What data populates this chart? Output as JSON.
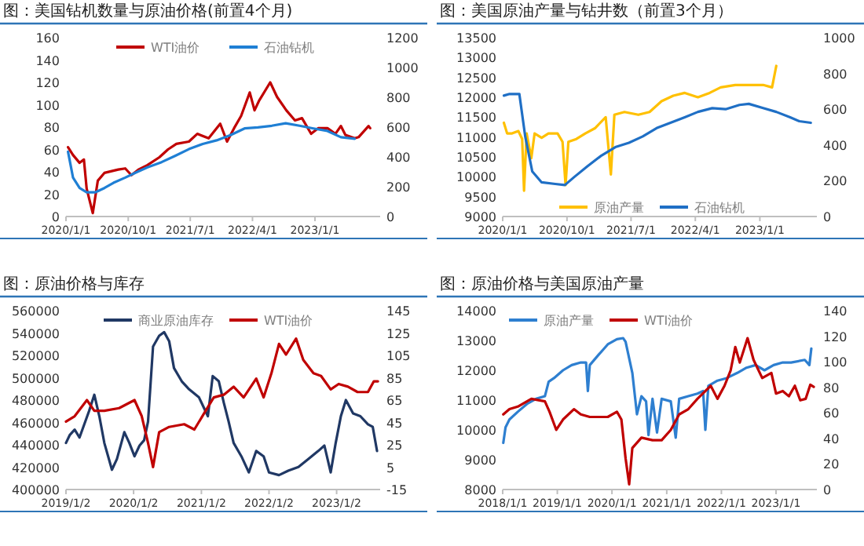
{
  "chart_data": [
    {
      "type": "line",
      "title": "图：美国钻机数量与原油价格(前置4个月)",
      "legend": "top",
      "xlim": [
        "2020-01-01",
        "2023-10-15"
      ],
      "xticks": [
        {
          "value": "2020-01-01",
          "label": "2020/1/1"
        },
        {
          "value": "2020-10-01",
          "label": "2020/10/1"
        },
        {
          "value": "2021-07-01",
          "label": "2021/7/1"
        },
        {
          "value": "2022-04-01",
          "label": "2022/4/1"
        },
        {
          "value": "2023-01-01",
          "label": "2023/1/1"
        }
      ],
      "ylim": [
        0,
        160
      ],
      "yticks": [
        0,
        20,
        40,
        60,
        80,
        100,
        120,
        140,
        160
      ],
      "y2lim": [
        0,
        1200
      ],
      "y2ticks": [
        0,
        200,
        400,
        600,
        800,
        1000,
        1200
      ],
      "series": [
        {
          "name": "WTI油价",
          "color": "#c00000",
          "x": [
            "2020-01-10",
            "2020-02-01",
            "2020-03-01",
            "2020-03-20",
            "2020-04-01",
            "2020-04-28",
            "2020-05-20",
            "2020-06-18",
            "2020-08-18",
            "2020-09-18",
            "2020-10-15",
            "2020-11-15",
            "2020-12-25",
            "2021-02-15",
            "2021-03-25",
            "2021-05-01",
            "2021-06-25",
            "2021-08-01",
            "2021-09-20",
            "2021-11-10",
            "2021-12-10",
            "2022-01-10",
            "2022-02-10",
            "2022-03-20",
            "2022-04-10",
            "2022-05-01",
            "2022-06-18",
            "2022-07-18",
            "2022-08-28",
            "2022-10-05",
            "2022-11-05",
            "2022-12-15",
            "2023-01-15",
            "2023-02-25",
            "2023-04-01",
            "2023-04-25",
            "2023-05-15",
            "2023-06-25",
            "2023-07-12",
            "2023-08-25",
            "2023-09-01"
          ],
          "values": [
            62,
            55,
            48,
            51,
            25,
            3,
            32,
            39,
            42,
            43,
            37,
            42,
            46,
            53,
            60,
            65,
            67,
            74,
            70,
            83,
            67,
            79,
            90,
            111,
            95,
            104,
            120,
            107,
            95,
            86,
            88,
            74,
            79,
            79,
            74,
            81,
            73,
            70,
            71,
            81,
            79
          ]
        },
        {
          "name": "石油钻机",
          "color": "#1f7fd4",
          "axis": "y2",
          "x": [
            "2020-01-10",
            "2020-02-01",
            "2020-03-01",
            "2020-04-01",
            "2020-05-10",
            "2020-06-18",
            "2020-07-28",
            "2020-09-18",
            "2020-11-05",
            "2020-12-25",
            "2021-02-25",
            "2021-04-25",
            "2021-06-25",
            "2021-08-25",
            "2021-10-25",
            "2021-12-25",
            "2022-02-25",
            "2022-04-25",
            "2022-06-25",
            "2022-08-25",
            "2022-10-25",
            "2022-12-25",
            "2023-02-25",
            "2023-04-25",
            "2023-06-25"
          ],
          "values": [
            435,
            261,
            191,
            163,
            163,
            191,
            226,
            261,
            296,
            330,
            365,
            407,
            452,
            487,
            511,
            546,
            591,
            598,
            609,
            626,
            609,
            591,
            574,
            532,
            522
          ]
        }
      ]
    },
    {
      "type": "line",
      "title": "图：美国原油产量与钻井数（前置3个月）",
      "legend": "bottom",
      "xlim": [
        "2020-01-01",
        "2023-09-01"
      ],
      "xticks": [
        {
          "value": "2020-01-01",
          "label": "2020/1/1"
        },
        {
          "value": "2020-10-01",
          "label": "2020/10/1"
        },
        {
          "value": "2021-07-01",
          "label": "2021/7/1"
        },
        {
          "value": "2022-04-01",
          "label": "2022/4/1"
        },
        {
          "value": "2023-01-01",
          "label": "2023/1/1"
        }
      ],
      "ylim": [
        9000,
        13500
      ],
      "yticks": [
        9000,
        9500,
        10000,
        10500,
        11000,
        11500,
        12000,
        12500,
        13000,
        13500
      ],
      "y2lim": [
        0,
        1000
      ],
      "y2ticks": [
        0,
        200,
        400,
        600,
        800,
        1000
      ],
      "series": [
        {
          "name": "原油产量",
          "color": "#ffc000",
          "x": [
            "2020-01-06",
            "2020-01-20",
            "2020-02-10",
            "2020-03-08",
            "2020-03-24",
            "2020-04-01",
            "2020-04-12",
            "2020-05-02",
            "2020-05-16",
            "2020-06-15",
            "2020-07-14",
            "2020-08-22",
            "2020-09-12",
            "2020-09-25",
            "2020-10-07",
            "2020-11-10",
            "2020-12-18",
            "2021-01-28",
            "2021-03-15",
            "2021-04-06",
            "2021-04-21",
            "2021-06-03",
            "2021-08-01",
            "2021-09-18",
            "2021-11-08",
            "2021-12-28",
            "2022-02-15",
            "2022-04-12",
            "2022-06-01",
            "2022-07-18",
            "2022-09-18",
            "2022-11-15",
            "2023-01-15",
            "2023-02-22",
            "2023-03-12"
          ],
          "values": [
            11360,
            11090,
            11090,
            11150,
            10950,
            9650,
            11090,
            10470,
            11090,
            10980,
            11090,
            11090,
            10880,
            9790,
            10880,
            10950,
            11090,
            11220,
            11500,
            10060,
            11560,
            11630,
            11560,
            11630,
            11900,
            12040,
            12110,
            12000,
            12110,
            12250,
            12310,
            12310,
            12310,
            12250,
            12790
          ]
        },
        {
          "name": "石油钻机",
          "color": "#1f6fc5",
          "axis": "y2",
          "x": [
            "2020-01-06",
            "2020-01-30",
            "2020-03-12",
            "2020-04-06",
            "2020-05-06",
            "2020-06-15",
            "2020-08-12",
            "2020-09-22",
            "2020-11-01",
            "2020-12-28",
            "2021-02-26",
            "2021-04-25",
            "2021-06-22",
            "2021-08-20",
            "2021-10-18",
            "2021-12-16",
            "2022-02-15",
            "2022-04-12",
            "2022-06-12",
            "2022-08-08",
            "2022-10-06",
            "2022-11-15",
            "2023-01-15",
            "2023-03-12",
            "2023-05-10",
            "2023-06-18",
            "2023-08-06"
          ],
          "values": [
            676,
            685,
            685,
            448,
            252,
            191,
            182,
            176,
            221,
            282,
            342,
            388,
            412,
            448,
            494,
            524,
            555,
            585,
            606,
            600,
            624,
            630,
            606,
            585,
            555,
            533,
            524
          ]
        }
      ]
    },
    {
      "type": "line",
      "title": "图：原油价格与库存",
      "legend": "top",
      "xlim": [
        "2019-01-02",
        "2023-08-25"
      ],
      "xticks": [
        {
          "value": "2019-01-02",
          "label": "2019/1/2"
        },
        {
          "value": "2020-01-02",
          "label": "2020/1/2"
        },
        {
          "value": "2021-01-02",
          "label": "2021/1/2"
        },
        {
          "value": "2022-01-02",
          "label": "2022/1/2"
        },
        {
          "value": "2023-01-02",
          "label": "2023/1/2"
        }
      ],
      "ylim": [
        400000,
        560000
      ],
      "yticks": [
        400000,
        420000,
        440000,
        460000,
        480000,
        500000,
        520000,
        540000,
        560000
      ],
      "y2lim": [
        -15,
        145
      ],
      "y2ticks": [
        -15,
        5,
        25,
        45,
        65,
        85,
        105,
        125,
        145
      ],
      "series": [
        {
          "name": "商业原油库存",
          "color": "#203864",
          "x": [
            "2019-01-02",
            "2019-01-23",
            "2019-02-18",
            "2019-03-16",
            "2019-04-11",
            "2019-05-07",
            "2019-06-04",
            "2019-07-01",
            "2019-07-28",
            "2019-09-07",
            "2019-10-04",
            "2019-11-13",
            "2019-12-10",
            "2020-01-07",
            "2020-02-03",
            "2020-02-28",
            "2020-03-20",
            "2020-04-16",
            "2020-05-19",
            "2020-06-15",
            "2020-07-12",
            "2020-08-07",
            "2020-09-18",
            "2020-10-28",
            "2020-12-20",
            "2021-02-06",
            "2021-03-04",
            "2021-04-06",
            "2021-05-03",
            "2021-05-29",
            "2021-06-25",
            "2021-08-06",
            "2021-09-15",
            "2021-10-25",
            "2021-12-04",
            "2022-01-02",
            "2022-02-25",
            "2022-04-16",
            "2022-06-10",
            "2022-08-03",
            "2022-09-25",
            "2022-10-28",
            "2022-12-01",
            "2022-12-28",
            "2023-01-25",
            "2023-02-21",
            "2023-04-01",
            "2023-05-10",
            "2023-06-20",
            "2023-07-16",
            "2023-08-08"
          ],
          "values": [
            441700,
            448900,
            453600,
            446500,
            458400,
            470400,
            484800,
            465600,
            441700,
            417700,
            427300,
            451300,
            441700,
            429700,
            439300,
            444100,
            460800,
            527900,
            537500,
            540800,
            532700,
            508700,
            496800,
            489600,
            482400,
            465600,
            501500,
            496800,
            477600,
            460800,
            441700,
            429700,
            415300,
            434500,
            429700,
            415300,
            412900,
            416800,
            420100,
            427300,
            434500,
            439300,
            415300,
            441700,
            465600,
            480000,
            468000,
            465600,
            458400,
            456000,
            434500
          ]
        },
        {
          "name": "WTI油价",
          "color": "#c00000",
          "axis": "y2",
          "x": [
            "2019-01-02",
            "2019-02-18",
            "2019-04-25",
            "2019-06-04",
            "2019-07-28",
            "2019-10-16",
            "2020-01-07",
            "2020-02-15",
            "2020-03-20",
            "2020-04-16",
            "2020-05-19",
            "2020-07-12",
            "2020-10-01",
            "2020-11-25",
            "2021-01-16",
            "2021-03-10",
            "2021-05-03",
            "2021-06-25",
            "2021-08-18",
            "2021-10-25",
            "2021-12-04",
            "2022-01-15",
            "2022-02-25",
            "2022-04-04",
            "2022-05-28",
            "2022-07-06",
            "2022-08-30",
            "2022-10-10",
            "2022-12-01",
            "2023-01-13",
            "2023-03-04",
            "2023-04-25",
            "2023-06-20",
            "2023-07-22",
            "2023-08-13"
          ],
          "values": [
            45.8,
            50.6,
            65,
            55.4,
            55.4,
            57.8,
            65,
            50.6,
            26.7,
            5.1,
            36.3,
            41,
            43.4,
            38.7,
            53,
            67.4,
            69.8,
            77,
            67.4,
            84.2,
            67.4,
            89,
            115.3,
            105.7,
            120,
            100.9,
            89,
            86.6,
            74.6,
            79.4,
            77,
            72.2,
            72.2,
            81.8,
            81.8
          ]
        }
      ]
    },
    {
      "type": "line",
      "title": "图：原油价格与美国原油产量",
      "legend": "top left",
      "xlim": [
        "2018-01-01",
        "2023-10-01"
      ],
      "xticks": [
        {
          "value": "2018-01-01",
          "label": "2018/1/1"
        },
        {
          "value": "2019-01-01",
          "label": "2019/1/1"
        },
        {
          "value": "2020-01-01",
          "label": "2020/1/1"
        },
        {
          "value": "2021-01-01",
          "label": "2021/1/1"
        },
        {
          "value": "2022-01-01",
          "label": "2022/1/1"
        },
        {
          "value": "2023-01-01",
          "label": "2023/1/1"
        }
      ],
      "ylim": [
        8000,
        14000
      ],
      "yticks": [
        8000,
        9000,
        10000,
        11000,
        12000,
        13000,
        14000
      ],
      "y2lim": [
        0,
        140
      ],
      "y2ticks": [
        0,
        20,
        40,
        60,
        80,
        100,
        120,
        140
      ],
      "series": [
        {
          "name": "原油产量",
          "color": "#2e7fd0",
          "x": [
            "2018-01-05",
            "2018-01-20",
            "2018-02-15",
            "2018-04-12",
            "2018-06-12",
            "2018-08-12",
            "2018-10-10",
            "2018-11-04",
            "2018-12-10",
            "2019-02-08",
            "2019-04-07",
            "2019-06-07",
            "2019-07-12",
            "2019-07-24",
            "2019-08-06",
            "2019-10-04",
            "2019-12-04",
            "2020-02-03",
            "2020-03-16",
            "2020-04-01",
            "2020-05-16",
            "2020-06-16",
            "2020-07-16",
            "2020-08-16",
            "2020-09-01",
            "2020-09-28",
            "2020-10-28",
            "2020-11-28",
            "2021-01-28",
            "2021-03-02",
            "2021-03-25",
            "2021-05-25",
            "2021-07-25",
            "2021-09-01",
            "2021-09-16",
            "2021-10-06",
            "2021-12-06",
            "2022-02-06",
            "2022-04-18",
            "2022-06-18",
            "2022-08-18",
            "2022-10-16",
            "2022-12-16",
            "2023-02-15",
            "2023-04-12",
            "2023-07-12",
            "2023-08-12",
            "2023-08-25"
          ],
          "values": [
            9565,
            10087,
            10348,
            10609,
            10870,
            11043,
            11130,
            11617,
            11739,
            12000,
            12174,
            12261,
            12261,
            11304,
            12174,
            12522,
            12870,
            13043,
            13078,
            12957,
            11913,
            10522,
            11130,
            10957,
            9826,
            11043,
            9913,
            11043,
            10957,
            9739,
            11043,
            11130,
            11217,
            11304,
            10000,
            11478,
            11652,
            11739,
            11913,
            12087,
            12174,
            12000,
            12174,
            12261,
            12261,
            12348,
            12174,
            12730
          ]
        },
        {
          "name": "WTI油价",
          "color": "#c00000",
          "axis": "y2",
          "x": [
            "2018-01-05",
            "2018-02-15",
            "2018-04-12",
            "2018-07-12",
            "2018-10-10",
            "2018-11-10",
            "2018-12-25",
            "2019-02-08",
            "2019-04-22",
            "2019-06-07",
            "2019-08-06",
            "2019-10-04",
            "2019-12-04",
            "2020-02-03",
            "2020-03-04",
            "2020-04-01",
            "2020-04-25",
            "2020-05-16",
            "2020-07-16",
            "2020-09-28",
            "2020-11-28",
            "2021-01-28",
            "2021-03-25",
            "2021-05-25",
            "2021-07-25",
            "2021-10-22",
            "2021-12-06",
            "2022-01-22",
            "2022-03-04",
            "2022-04-04",
            "2022-05-04",
            "2022-06-25",
            "2022-08-04",
            "2022-10-01",
            "2022-12-01",
            "2023-01-01",
            "2023-02-15",
            "2023-03-28",
            "2023-05-07",
            "2023-06-12",
            "2023-07-18",
            "2023-08-18",
            "2023-09-10"
          ],
          "values": [
            58.8,
            62.9,
            64.9,
            71,
            69,
            60.9,
            46.7,
            54.8,
            62.9,
            58.8,
            56.8,
            56.8,
            56.8,
            60.9,
            54.8,
            24.4,
            4.1,
            32.5,
            40.6,
            38.6,
            38.6,
            46.7,
            58.8,
            62.9,
            71,
            81.2,
            71,
            81.2,
            93.3,
            111.6,
            99.4,
            118.5,
            101.5,
            87.3,
            91.3,
            75.1,
            77.1,
            73,
            81.2,
            69.8,
            71,
            82,
            80.4
          ]
        }
      ]
    }
  ]
}
